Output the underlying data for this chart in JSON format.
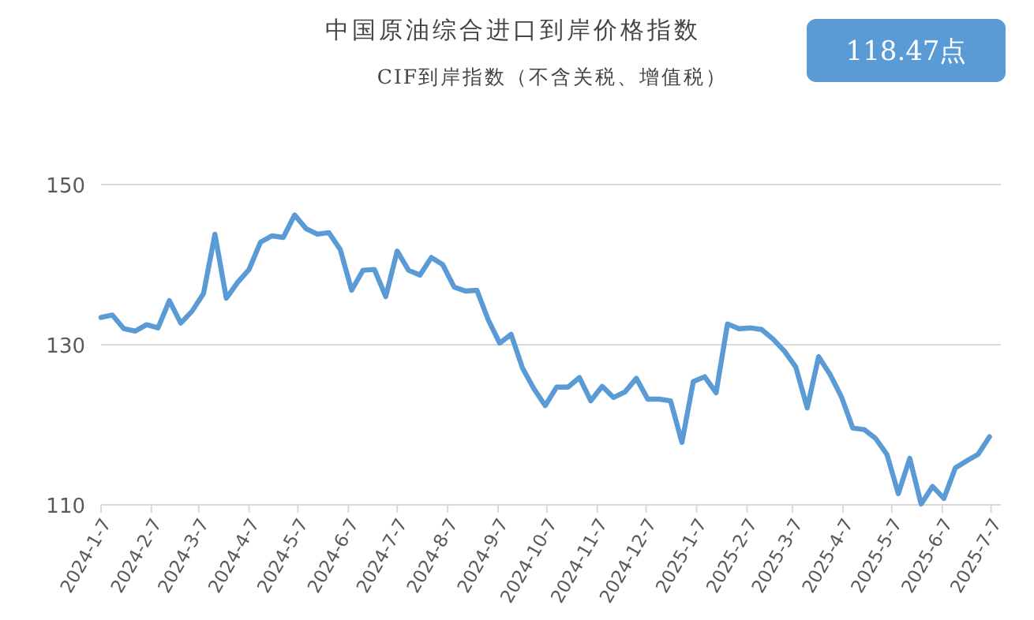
{
  "chart_data": {
    "type": "line",
    "title": "中国原油综合进口到岸价格指数",
    "subtitle": "CIF到岸指数（不含关税、增值税）",
    "annotations": [
      "118.47点"
    ],
    "x": [
      "2024-01-07",
      "2024-01-14",
      "2024-01-21",
      "2024-01-28",
      "2024-02-04",
      "2024-02-11",
      "2024-02-18",
      "2024-02-25",
      "2024-03-03",
      "2024-03-10",
      "2024-03-17",
      "2024-03-24",
      "2024-03-31",
      "2024-04-07",
      "2024-04-14",
      "2024-04-21",
      "2024-04-28",
      "2024-05-05",
      "2024-05-12",
      "2024-05-19",
      "2024-05-26",
      "2024-06-02",
      "2024-06-09",
      "2024-06-16",
      "2024-06-23",
      "2024-06-30",
      "2024-07-07",
      "2024-07-14",
      "2024-07-21",
      "2024-07-28",
      "2024-08-04",
      "2024-08-11",
      "2024-08-18",
      "2024-08-25",
      "2024-09-01",
      "2024-09-08",
      "2024-09-15",
      "2024-09-22",
      "2024-09-29",
      "2024-10-06",
      "2024-10-13",
      "2024-10-20",
      "2024-10-27",
      "2024-11-03",
      "2024-11-10",
      "2024-11-17",
      "2024-11-24",
      "2024-12-01",
      "2024-12-08",
      "2024-12-15",
      "2024-12-22",
      "2024-12-29",
      "2025-01-05",
      "2025-01-12",
      "2025-01-19",
      "2025-01-26",
      "2025-02-02",
      "2025-02-09",
      "2025-02-16",
      "2025-02-23",
      "2025-03-02",
      "2025-03-09",
      "2025-03-16",
      "2025-03-23",
      "2025-03-30",
      "2025-04-06",
      "2025-04-13",
      "2025-04-20",
      "2025-04-27",
      "2025-05-04",
      "2025-05-11",
      "2025-05-18",
      "2025-05-25",
      "2025-06-01",
      "2025-06-08",
      "2025-06-15",
      "2025-06-22",
      "2025-06-29",
      "2025-07-06"
    ],
    "series": [
      {
        "color": "#5b9bd5",
        "values": [
          133.4,
          133.7,
          132.0,
          131.7,
          132.5,
          132.1,
          135.5,
          132.7,
          134.2,
          136.4,
          143.8,
          135.8,
          137.8,
          139.4,
          142.8,
          143.6,
          143.4,
          146.2,
          144.5,
          143.8,
          144.0,
          141.9,
          136.8,
          139.3,
          139.4,
          136.0,
          141.7,
          139.3,
          138.7,
          140.9,
          140.0,
          137.2,
          136.7,
          136.8,
          133.1,
          130.2,
          131.3,
          127.1,
          124.5,
          122.4,
          124.7,
          124.7,
          125.9,
          123.0,
          124.8,
          123.4,
          124.1,
          125.8,
          123.2,
          123.2,
          123.0,
          117.8,
          125.4,
          126.0,
          124.0,
          132.6,
          132.0,
          132.1,
          131.9,
          130.7,
          129.2,
          127.2,
          122.1,
          128.5,
          126.3,
          123.5,
          119.6,
          119.4,
          118.3,
          116.3,
          111.4,
          115.8,
          110.1,
          112.3,
          110.8,
          114.6,
          115.5,
          116.3,
          118.5
        ]
      }
    ],
    "xlim": [
      "2024-01-07",
      "2025-07-13"
    ],
    "xticks": [
      {
        "value": "2024-01-07",
        "label": "2024-1-7"
      },
      {
        "value": "2024-02-07",
        "label": "2024-2-7"
      },
      {
        "value": "2024-03-07",
        "label": "2024-3-7"
      },
      {
        "value": "2024-04-07",
        "label": "2024-4-7"
      },
      {
        "value": "2024-05-07",
        "label": "2024-5-7"
      },
      {
        "value": "2024-06-07",
        "label": "2024-6-7"
      },
      {
        "value": "2024-07-07",
        "label": "2024-7-7"
      },
      {
        "value": "2024-08-07",
        "label": "2024-8-7"
      },
      {
        "value": "2024-09-07",
        "label": "2024-9-7"
      },
      {
        "value": "2024-10-07",
        "label": "2024-10-7"
      },
      {
        "value": "2024-11-07",
        "label": "2024-11-7"
      },
      {
        "value": "2024-12-07",
        "label": "2024-12-7"
      },
      {
        "value": "2025-01-07",
        "label": "2025-1-7"
      },
      {
        "value": "2025-02-07",
        "label": "2025-2-7"
      },
      {
        "value": "2025-03-07",
        "label": "2025-3-7"
      },
      {
        "value": "2025-04-07",
        "label": "2025-4-7"
      },
      {
        "value": "2025-05-07",
        "label": "2025-5-7"
      },
      {
        "value": "2025-06-07",
        "label": "2025-6-7"
      },
      {
        "value": "2025-07-07",
        "label": "2025-7-7"
      }
    ],
    "ylim": [
      110,
      150
    ],
    "yticks": [
      110,
      130,
      150
    ],
    "grid": "y",
    "marker": "none",
    "line_style": "solid"
  }
}
